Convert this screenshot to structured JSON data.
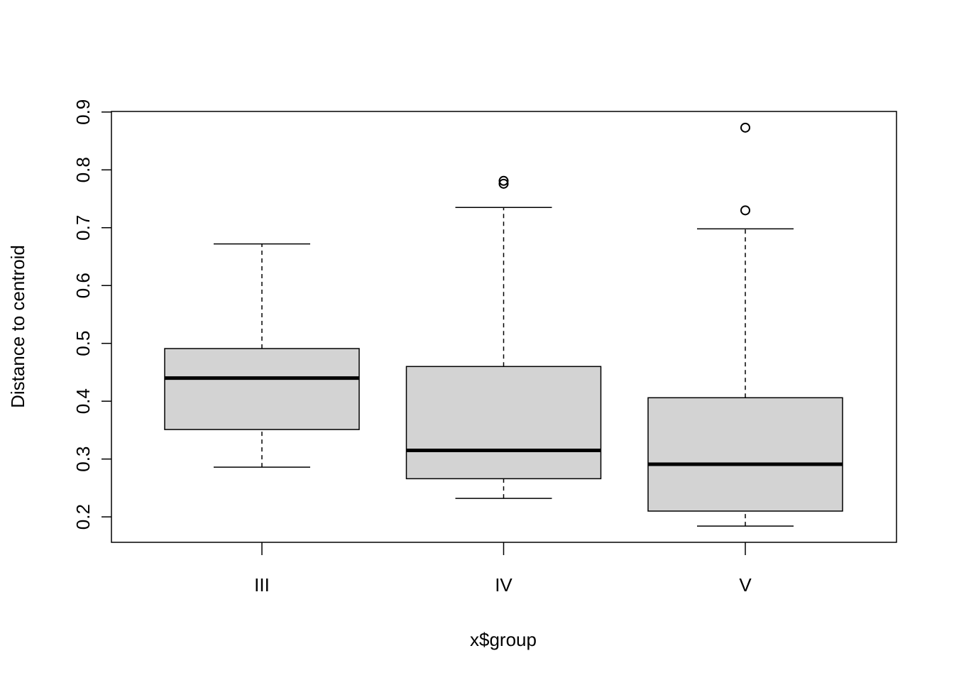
{
  "chart_data": {
    "type": "boxplot",
    "xlabel": "x$group",
    "ylabel": "Distance to centroid",
    "categories": [
      "III",
      "IV",
      "V"
    ],
    "color": "#d3d3d3",
    "boxes": [
      {
        "whisker_low": 0.286,
        "q1": 0.351,
        "median": 0.44,
        "q3": 0.491,
        "whisker_high": 0.672,
        "outliers": []
      },
      {
        "whisker_low": 0.232,
        "q1": 0.266,
        "median": 0.315,
        "q3": 0.46,
        "whisker_high": 0.735,
        "outliers": [
          0.781,
          0.776
        ]
      },
      {
        "whisker_low": 0.184,
        "q1": 0.21,
        "median": 0.291,
        "q3": 0.406,
        "whisker_high": 0.698,
        "outliers": [
          0.73,
          0.873
        ]
      }
    ],
    "ylim": [
      0.156,
      0.901
    ],
    "yticks": [
      0.2,
      0.3,
      0.4,
      0.5,
      0.6,
      0.7,
      0.8,
      0.9
    ]
  }
}
